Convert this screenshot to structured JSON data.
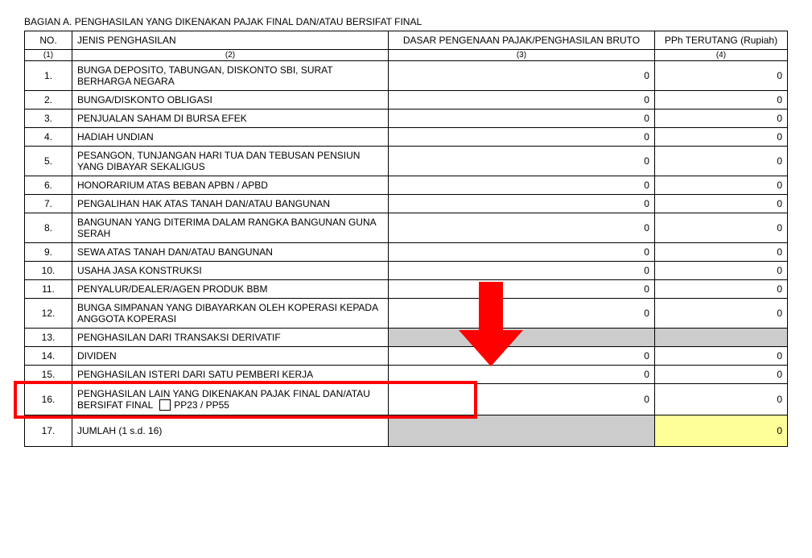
{
  "section_title": "BAGIAN A. PENGHASILAN YANG DIKENAKAN PAJAK FINAL DAN/ATAU BERSIFAT FINAL",
  "headers": {
    "no": "NO.",
    "jenis": "JENIS PENGHASILAN",
    "dasar": "DASAR PENGENAAN PAJAK/PENGHASILAN BRUTO",
    "pph": "PPh TERUTANG (Rupiah)"
  },
  "subheaders": {
    "c1": "(1)",
    "c2": "(2)",
    "c3": "(3)",
    "c4": "(4)"
  },
  "rows": [
    {
      "no": "1.",
      "jenis": "BUNGA DEPOSITO, TABUNGAN, DISKONTO SBI, SURAT BERHARGA NEGARA",
      "dasar": "0",
      "pph": "0"
    },
    {
      "no": "2.",
      "jenis": "BUNGA/DISKONTO OBLIGASI",
      "dasar": "0",
      "pph": "0"
    },
    {
      "no": "3.",
      "jenis": "PENJUALAN SAHAM DI BURSA EFEK",
      "dasar": "0",
      "pph": "0"
    },
    {
      "no": "4.",
      "jenis": "HADIAH UNDIAN",
      "dasar": "0",
      "pph": "0"
    },
    {
      "no": "5.",
      "jenis": "PESANGON, TUNJANGAN HARI TUA DAN TEBUSAN PENSIUN YANG DIBAYAR SEKALIGUS",
      "dasar": "0",
      "pph": "0"
    },
    {
      "no": "6.",
      "jenis": "HONORARIUM ATAS BEBAN APBN / APBD",
      "dasar": "0",
      "pph": "0"
    },
    {
      "no": "7.",
      "jenis": "PENGALIHAN HAK ATAS TANAH DAN/ATAU BANGUNAN",
      "dasar": "0",
      "pph": "0"
    },
    {
      "no": "8.",
      "jenis": "BANGUNAN YANG DITERIMA DALAM RANGKA BANGUNAN GUNA SERAH",
      "dasar": "0",
      "pph": "0"
    },
    {
      "no": "9.",
      "jenis": "SEWA ATAS TANAH DAN/ATAU BANGUNAN",
      "dasar": "0",
      "pph": "0"
    },
    {
      "no": "10.",
      "jenis": "USAHA JASA KONSTRUKSI",
      "dasar": "0",
      "pph": "0"
    },
    {
      "no": "11.",
      "jenis": "PENYALUR/DEALER/AGEN PRODUK BBM",
      "dasar": "0",
      "pph": "0"
    },
    {
      "no": "12.",
      "jenis": "BUNGA SIMPANAN YANG DIBAYARKAN OLEH KOPERASI KEPADA ANGGOTA KOPERASI",
      "dasar": "0",
      "pph": "0"
    },
    {
      "no": "13.",
      "jenis": "PENGHASILAN DARI TRANSAKSI DERIVATIF",
      "dasar": "",
      "pph": "",
      "dasar_grey": true,
      "pph_grey": true
    },
    {
      "no": "14.",
      "jenis": "DIVIDEN",
      "dasar": "0",
      "pph": "0"
    },
    {
      "no": "15.",
      "jenis": "PENGHASILAN ISTERI DARI SATU PEMBERI KERJA",
      "dasar": "0",
      "pph": "0"
    },
    {
      "no": "16.",
      "jenis_special": true,
      "jenis_a": "PENGHASILAN LAIN YANG DIKENAKAN PAJAK FINAL DAN/ATAU BERSIFAT FINAL",
      "jenis_b": "PP23 / PP55",
      "dasar": "0",
      "pph": "0",
      "tall": true
    },
    {
      "no": "17.",
      "jenis": "JUMLAH (1 s.d. 16)",
      "dasar": "",
      "pph": "0",
      "dasar_grey": true,
      "pph_yellow": true,
      "tall": true
    }
  ],
  "highlight": {
    "color": "#ff0000"
  },
  "arrow": {
    "color": "#ff0000"
  }
}
